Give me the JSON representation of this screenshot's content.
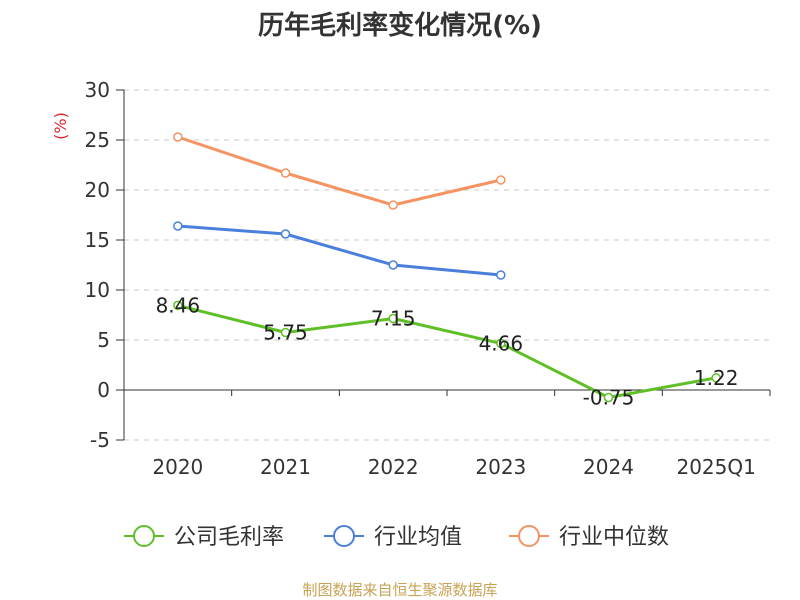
{
  "chart_data": {
    "type": "line",
    "title": "历年毛利率变化情况(%)",
    "unit": "(%)",
    "categories": [
      "2020",
      "2021",
      "2022",
      "2023",
      "2024",
      "2025Q1"
    ],
    "ylim": [
      -5,
      30
    ],
    "yticks": [
      30,
      25,
      20,
      15,
      10,
      5,
      0,
      -5
    ],
    "grid": true,
    "legend_placement": "bottom",
    "series": [
      {
        "name": "公司毛利率",
        "color": "#5fbf26",
        "values": [
          8.46,
          5.75,
          7.15,
          4.66,
          -0.75,
          1.22
        ],
        "labels": [
          "8.46",
          "5.75",
          "7.15",
          "4.66",
          "-0.75",
          "1.22"
        ]
      },
      {
        "name": "行业均值",
        "color": "#4a7fdc",
        "values": [
          16.4,
          15.6,
          12.5,
          11.5,
          null,
          null
        ]
      },
      {
        "name": "行业中位数",
        "color": "#f59362",
        "values": [
          25.3,
          21.7,
          18.5,
          21.0,
          null,
          null
        ]
      }
    ],
    "source": "制图数据来自恒生聚源数据库"
  }
}
